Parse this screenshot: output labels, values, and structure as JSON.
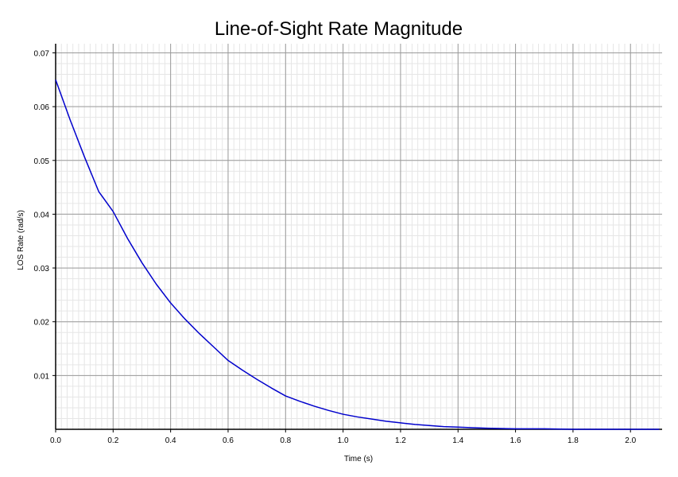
{
  "chart_data": {
    "type": "line",
    "title": "Line-of-Sight Rate Magnitude",
    "xlabel": "Time (s)",
    "ylabel": "LOS Rate (rad/s)",
    "xlim": [
      0,
      2.11
    ],
    "ylim": [
      0,
      0.0717
    ],
    "x_ticks": [
      "0.0",
      "0.2",
      "0.4",
      "0.6",
      "0.8",
      "1.0",
      "1.2",
      "1.4",
      "1.6",
      "1.8",
      "2.0"
    ],
    "y_ticks": [
      "0.01",
      "0.02",
      "0.03",
      "0.04",
      "0.05",
      "0.06",
      "0.07"
    ],
    "grid": true,
    "legend": "none",
    "series": [
      {
        "color": "#0000cc",
        "x": [
          0,
          0.05,
          0.1,
          0.15,
          0.2,
          0.25,
          0.3,
          0.35,
          0.4,
          0.45,
          0.5,
          0.55,
          0.6,
          0.65,
          0.7,
          0.75,
          0.8,
          0.85,
          0.9,
          0.95,
          1.0,
          1.05,
          1.1,
          1.15,
          1.2,
          1.25,
          1.3,
          1.35,
          1.4,
          1.45,
          1.5,
          1.6,
          1.7,
          1.8,
          1.9,
          2.0,
          2.1
        ],
        "y": [
          0.065,
          0.0576,
          0.0507,
          0.0442,
          0.0405,
          0.0355,
          0.031,
          0.027,
          0.0235,
          0.0205,
          0.0178,
          0.0153,
          0.0128,
          0.011,
          0.0093,
          0.0077,
          0.0062,
          0.0052,
          0.0043,
          0.0035,
          0.0028,
          0.0023,
          0.0019,
          0.0015,
          0.0012,
          0.0009,
          0.0007,
          0.0005,
          0.0004,
          0.0003,
          0.0002,
          0.0001,
          0.0001,
          0.0,
          0.0,
          0.0,
          0.0
        ]
      }
    ]
  }
}
